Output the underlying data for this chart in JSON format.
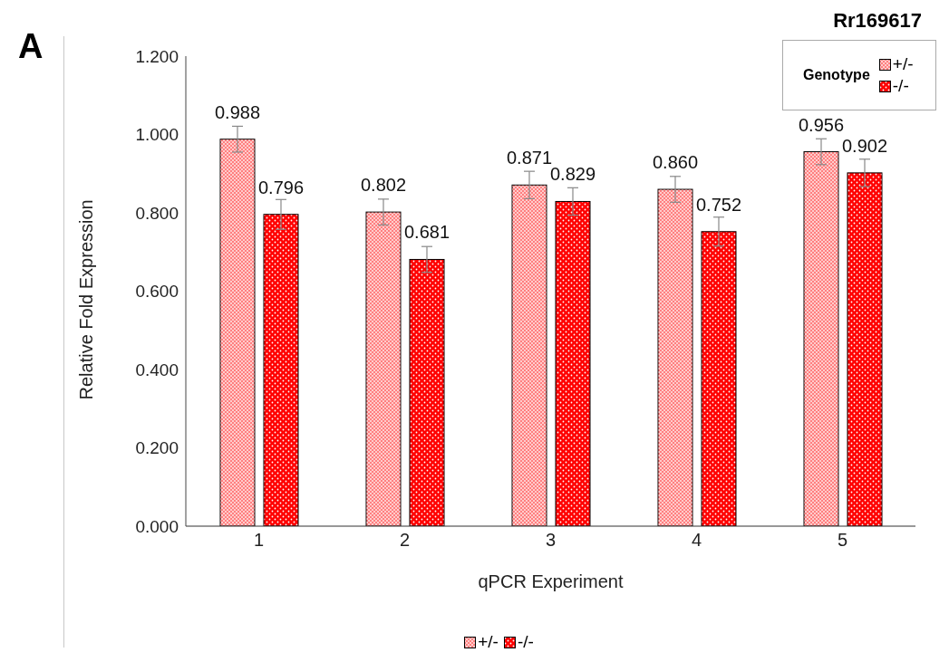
{
  "chart_data": {
    "type": "bar",
    "title": "Rr169617",
    "xlabel": "qPCR Experiment",
    "ylabel": "Relative Fold Expression",
    "legend_title": "Genotype",
    "annotations": [
      "A"
    ],
    "categories": [
      "1",
      "2",
      "3",
      "4",
      "5"
    ],
    "series": [
      {
        "name": "+/-",
        "color": "#ff7f7f",
        "values": [
          0.988,
          0.802,
          0.871,
          0.86,
          0.956
        ],
        "value_labels": [
          "0.988",
          "0.802",
          "0.871",
          "0.860",
          "0.956"
        ],
        "errors": [
          0.033,
          0.033,
          0.035,
          0.033,
          0.033
        ]
      },
      {
        "name": "-/-",
        "color": "#ff0000",
        "values": [
          0.796,
          0.681,
          0.829,
          0.752,
          0.902
        ],
        "value_labels": [
          "0.796",
          "0.681",
          "0.829",
          "0.752",
          "0.902"
        ],
        "errors": [
          0.038,
          0.033,
          0.035,
          0.037,
          0.035
        ]
      }
    ],
    "ylim": [
      0,
      1.2
    ],
    "yticks": [
      {
        "value": 0,
        "label": "0.000"
      },
      {
        "value": 0.2,
        "label": "0.200"
      },
      {
        "value": 0.4,
        "label": "0.400"
      },
      {
        "value": 0.6,
        "label": "0.600"
      },
      {
        "value": 0.8,
        "label": "0.800"
      },
      {
        "value": 1,
        "label": "1.000"
      },
      {
        "value": 1.2,
        "label": "1.200"
      }
    ],
    "grid": false,
    "legend": "top right"
  }
}
